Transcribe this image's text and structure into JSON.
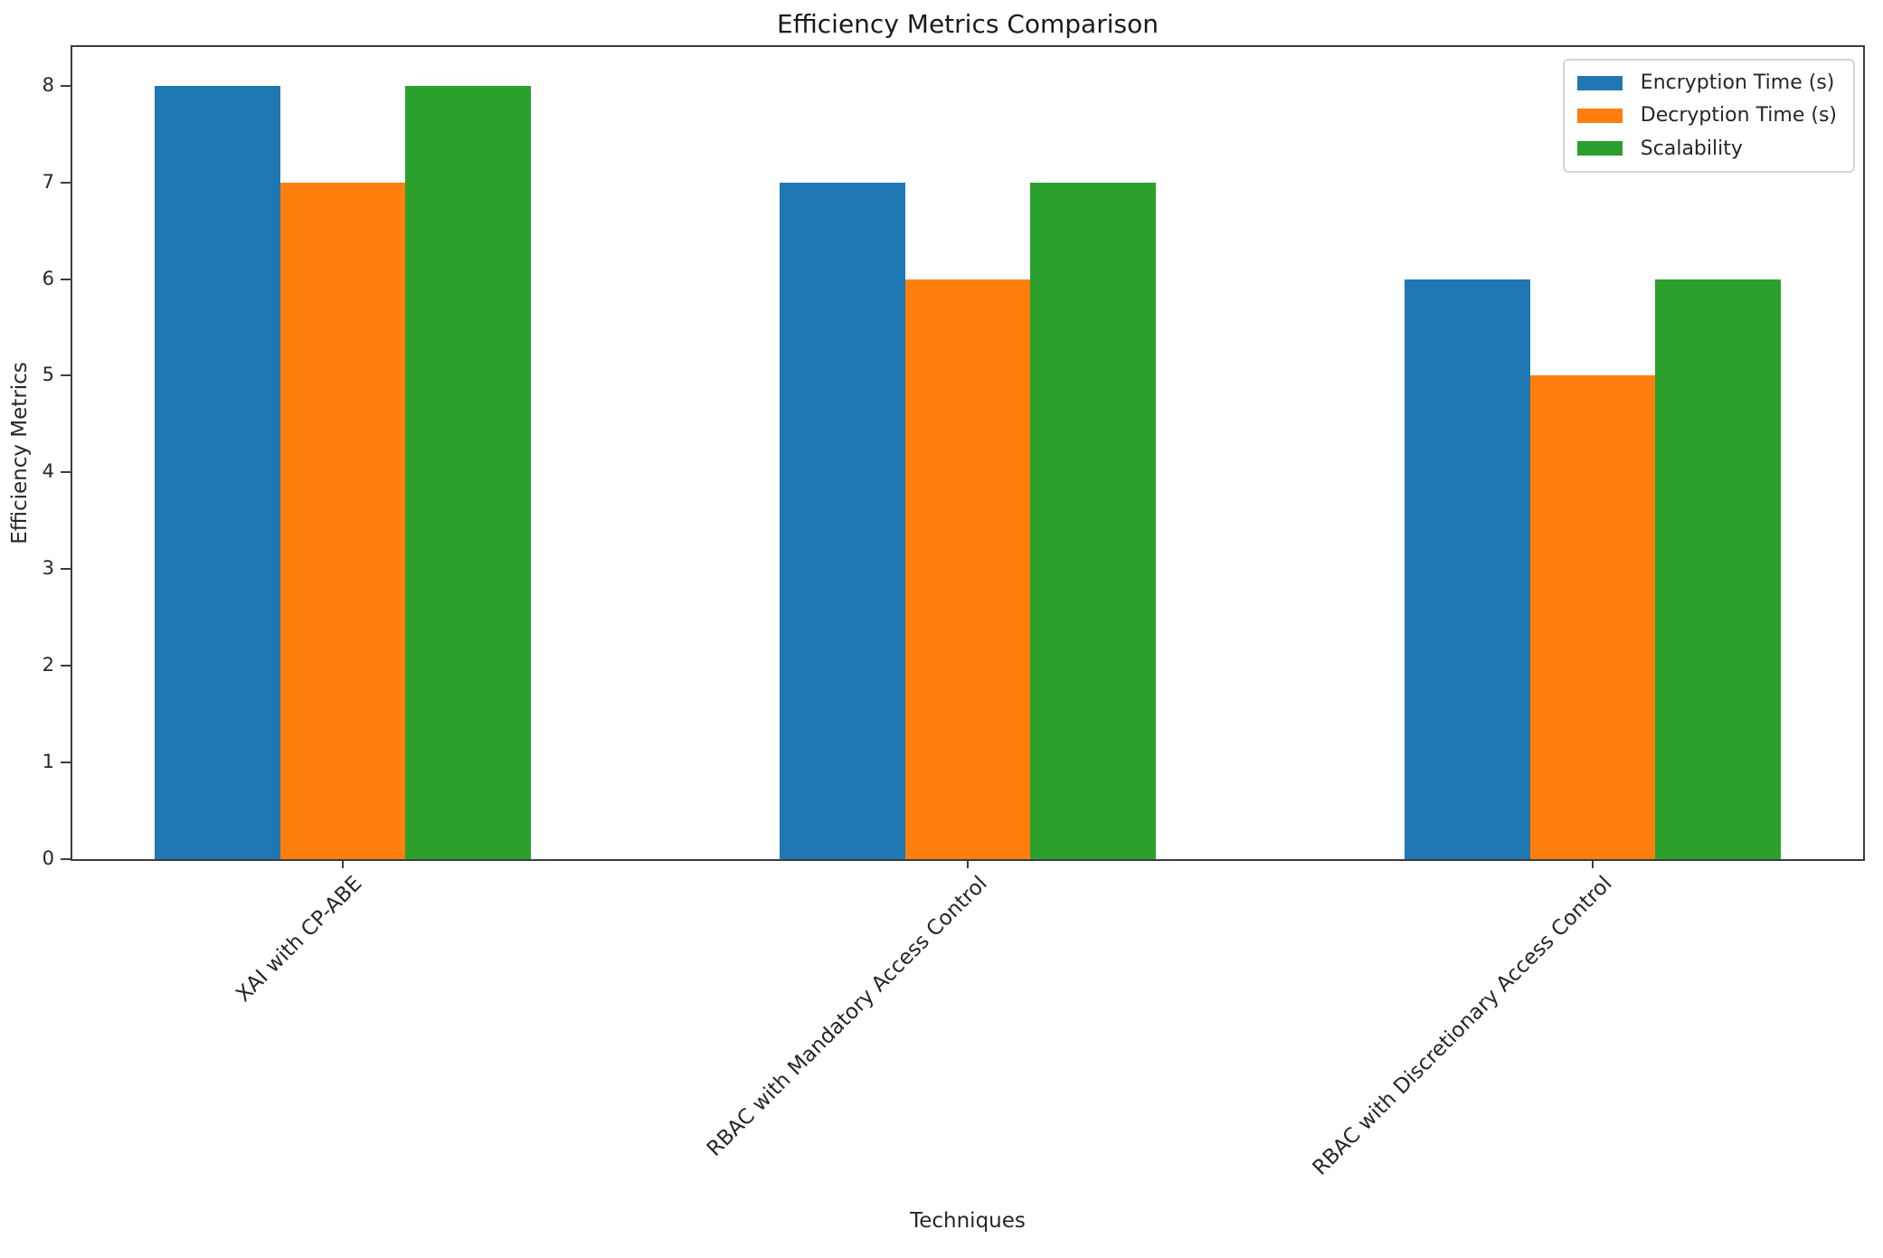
{
  "chart_data": {
    "type": "bar",
    "title": "Efficiency Metrics Comparison",
    "xlabel": "Techniques",
    "ylabel": "Efficiency Metrics",
    "categories": [
      "XAI with CP-ABE",
      "RBAC with Mandatory Access Control",
      "RBAC with Discretionary Access Control"
    ],
    "series": [
      {
        "name": "Encryption Time (s)",
        "color": "#1f77b4",
        "values": [
          8,
          7,
          6
        ]
      },
      {
        "name": "Decryption Time (s)",
        "color": "#ff7f0e",
        "values": [
          7,
          6,
          5
        ]
      },
      {
        "name": "Scalability",
        "color": "#2ca02c",
        "values": [
          8,
          7,
          6
        ]
      }
    ],
    "ylim": [
      0,
      8.4
    ],
    "yticks": [
      0,
      1,
      2,
      3,
      4,
      5,
      6,
      7,
      8
    ],
    "legend_position": "upper right",
    "grid": false,
    "x_tick_rotation_deg": 45
  }
}
